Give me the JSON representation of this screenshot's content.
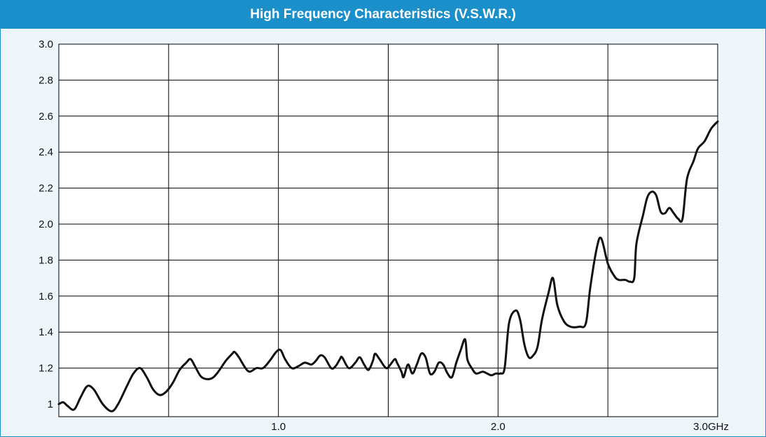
{
  "header": {
    "title": "High Frequency Characteristics (V.S.W.R.)"
  },
  "colors": {
    "header_bg": "#1a8fc9",
    "plot_bg": "#ffffff",
    "outer_bg": "#eef6fc",
    "grid": "#000000",
    "line": "#111111"
  },
  "chart_data": {
    "type": "line",
    "title": "High Frequency Characteristics (V.S.W.R.)",
    "xlabel": "",
    "ylabel": "",
    "xlim": [
      0,
      3.0
    ],
    "ylim": [
      0.95,
      3.0
    ],
    "grid": true,
    "x_ticks": [
      1.0,
      2.0,
      3.0
    ],
    "x_tick_labels": [
      "1.0",
      "2.0",
      "3.0GHz"
    ],
    "x_gridlines": [
      0.5,
      1.0,
      1.5,
      2.0,
      2.5
    ],
    "y_ticks": [
      1.0,
      1.2,
      1.4,
      1.6,
      1.8,
      2.0,
      2.2,
      2.4,
      2.6,
      2.8,
      3.0
    ],
    "y_tick_labels": [
      "1",
      "1.2",
      "1.4",
      "1.6",
      "1.8",
      "2.0",
      "2.2",
      "2.4",
      "2.6",
      "2.8",
      "3.0"
    ],
    "series": [
      {
        "values": [
          [
            0.0,
            1.0
          ],
          [
            0.02,
            1.01
          ],
          [
            0.04,
            0.99
          ],
          [
            0.07,
            0.97
          ],
          [
            0.1,
            1.04
          ],
          [
            0.13,
            1.1
          ],
          [
            0.16,
            1.08
          ],
          [
            0.2,
            1.0
          ],
          [
            0.24,
            0.96
          ],
          [
            0.27,
            1.0
          ],
          [
            0.31,
            1.1
          ],
          [
            0.34,
            1.17
          ],
          [
            0.37,
            1.2
          ],
          [
            0.4,
            1.15
          ],
          [
            0.43,
            1.08
          ],
          [
            0.46,
            1.05
          ],
          [
            0.49,
            1.07
          ],
          [
            0.52,
            1.12
          ],
          [
            0.55,
            1.19
          ],
          [
            0.58,
            1.23
          ],
          [
            0.6,
            1.25
          ],
          [
            0.62,
            1.21
          ],
          [
            0.65,
            1.15
          ],
          [
            0.69,
            1.14
          ],
          [
            0.72,
            1.17
          ],
          [
            0.76,
            1.24
          ],
          [
            0.79,
            1.28
          ],
          [
            0.8,
            1.29
          ],
          [
            0.82,
            1.26
          ],
          [
            0.85,
            1.2
          ],
          [
            0.87,
            1.18
          ],
          [
            0.9,
            1.2
          ],
          [
            0.93,
            1.2
          ],
          [
            0.96,
            1.24
          ],
          [
            0.99,
            1.29
          ],
          [
            1.01,
            1.3
          ],
          [
            1.03,
            1.25
          ],
          [
            1.06,
            1.2
          ],
          [
            1.09,
            1.21
          ],
          [
            1.12,
            1.23
          ],
          [
            1.15,
            1.22
          ],
          [
            1.17,
            1.24
          ],
          [
            1.19,
            1.27
          ],
          [
            1.21,
            1.26
          ],
          [
            1.24,
            1.2
          ],
          [
            1.26,
            1.21
          ],
          [
            1.28,
            1.25
          ],
          [
            1.29,
            1.26
          ],
          [
            1.32,
            1.2
          ],
          [
            1.35,
            1.23
          ],
          [
            1.37,
            1.26
          ],
          [
            1.39,
            1.22
          ],
          [
            1.41,
            1.19
          ],
          [
            1.43,
            1.24
          ],
          [
            1.44,
            1.28
          ],
          [
            1.46,
            1.25
          ],
          [
            1.49,
            1.2
          ],
          [
            1.51,
            1.22
          ],
          [
            1.53,
            1.25
          ],
          [
            1.54,
            1.23
          ],
          [
            1.56,
            1.18
          ],
          [
            1.57,
            1.15
          ],
          [
            1.59,
            1.22
          ],
          [
            1.61,
            1.17
          ],
          [
            1.63,
            1.22
          ],
          [
            1.65,
            1.28
          ],
          [
            1.67,
            1.26
          ],
          [
            1.69,
            1.17
          ],
          [
            1.71,
            1.18
          ],
          [
            1.73,
            1.23
          ],
          [
            1.75,
            1.22
          ],
          [
            1.77,
            1.17
          ],
          [
            1.79,
            1.15
          ],
          [
            1.81,
            1.23
          ],
          [
            1.83,
            1.3
          ],
          [
            1.85,
            1.36
          ],
          [
            1.86,
            1.25
          ],
          [
            1.88,
            1.2
          ],
          [
            1.9,
            1.17
          ],
          [
            1.93,
            1.18
          ],
          [
            1.95,
            1.17
          ],
          [
            1.97,
            1.16
          ],
          [
            1.99,
            1.17
          ],
          [
            2.01,
            1.17
          ],
          [
            2.03,
            1.2
          ],
          [
            2.05,
            1.45
          ],
          [
            2.08,
            1.52
          ],
          [
            2.1,
            1.47
          ],
          [
            2.12,
            1.33
          ],
          [
            2.14,
            1.26
          ],
          [
            2.16,
            1.27
          ],
          [
            2.18,
            1.32
          ],
          [
            2.2,
            1.47
          ],
          [
            2.23,
            1.62
          ],
          [
            2.25,
            1.7
          ],
          [
            2.27,
            1.55
          ],
          [
            2.3,
            1.46
          ],
          [
            2.33,
            1.43
          ],
          [
            2.37,
            1.43
          ],
          [
            2.4,
            1.45
          ],
          [
            2.42,
            1.65
          ],
          [
            2.45,
            1.87
          ],
          [
            2.47,
            1.92
          ],
          [
            2.5,
            1.78
          ],
          [
            2.53,
            1.71
          ],
          [
            2.55,
            1.69
          ],
          [
            2.58,
            1.69
          ],
          [
            2.6,
            1.68
          ],
          [
            2.62,
            1.7
          ],
          [
            2.63,
            1.89
          ],
          [
            2.66,
            2.05
          ],
          [
            2.68,
            2.15
          ],
          [
            2.7,
            2.18
          ],
          [
            2.72,
            2.16
          ],
          [
            2.74,
            2.07
          ],
          [
            2.76,
            2.06
          ],
          [
            2.78,
            2.09
          ],
          [
            2.8,
            2.06
          ],
          [
            2.82,
            2.03
          ],
          [
            2.84,
            2.03
          ],
          [
            2.86,
            2.25
          ],
          [
            2.89,
            2.35
          ],
          [
            2.91,
            2.42
          ],
          [
            2.94,
            2.46
          ],
          [
            2.97,
            2.53
          ],
          [
            3.0,
            2.57
          ]
        ]
      }
    ]
  }
}
